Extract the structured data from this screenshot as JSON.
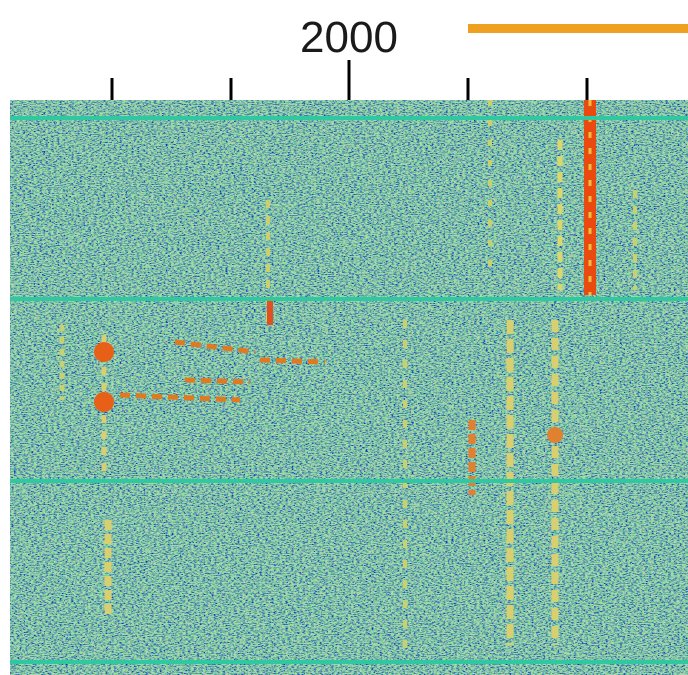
{
  "frequency_scale": {
    "label": "2000"
  }
}
